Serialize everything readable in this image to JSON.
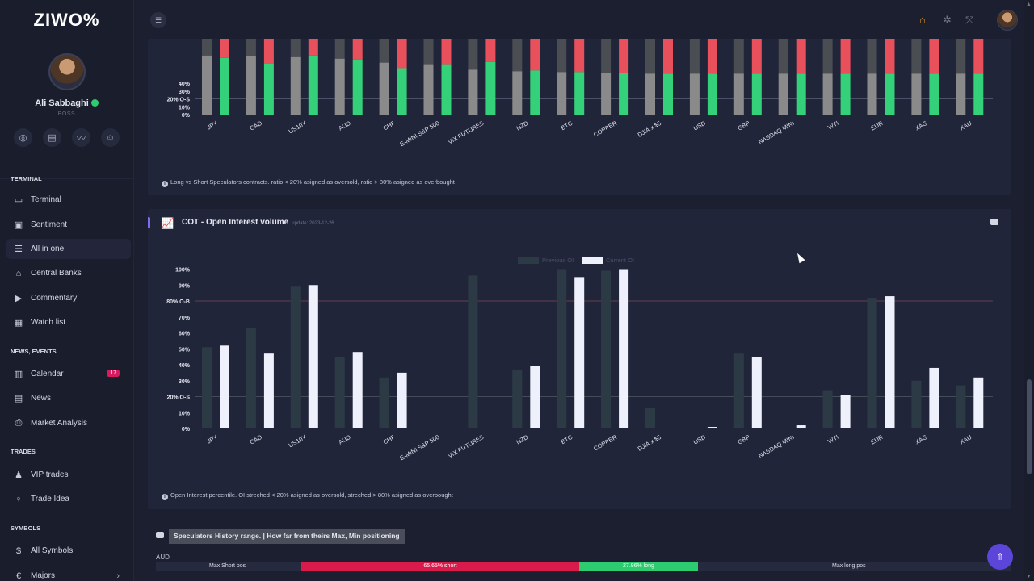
{
  "brand": {
    "logo": "ZIWO%"
  },
  "user": {
    "name": "Ali Sabbaghi",
    "role": "BOSS"
  },
  "profile_icons": [
    "support-icon",
    "document-icon",
    "chart-icon",
    "user-icon"
  ],
  "nav": {
    "terminal_section": "TERMINAL",
    "terminal": "Terminal",
    "sentiment": "Sentiment",
    "all_in_one": "All in one",
    "central_banks": "Central Banks",
    "commentary": "Commentary",
    "watch_list": "Watch list",
    "news_section": "NEWS, EVENTS",
    "calendar": "Calendar",
    "calendar_badge": "17",
    "news": "News",
    "market_analysis": "Market Analysis",
    "trades_section": "TRADES",
    "vip_trades": "VIP trades",
    "trade_idea": "Trade Idea",
    "symbols_section": "SYMBOLS",
    "all_symbols": "All Symbols",
    "majors": "Majors"
  },
  "chart1": {
    "note": "Long vs Short Speculators contracts. ratio < 20% asigned as oversold, ratio > 80% asigned as overbought"
  },
  "chart2": {
    "title": "COT - Open Interest volume",
    "update": "update: 2023-12-26",
    "note": "Open Interest percentile. OI streched < 20% asigned as oversold, streched > 80% asigned as overbought"
  },
  "history": {
    "title": "Speculators History range. | How far from theirs Max, Min positioning",
    "symbol": "AUD",
    "max_short_label": "Max Short pos",
    "short_label": "65.65% short",
    "long_label": "27.96% long",
    "max_long_label": "Max long pos",
    "short_pct": 65.65,
    "long_pct": 27.96
  },
  "chart_data": [
    {
      "type": "bar",
      "categories": [
        "JPY",
        "CAD",
        "US10Y",
        "AUD",
        "CHF",
        "E-MINI S&P 500",
        "VIX FUTURES",
        "NZD",
        "BTC",
        "COPPER",
        "DJIA x $5",
        "USD",
        "GBP",
        "NASDAQ MINI",
        "WTI",
        "EUR",
        "XAG",
        "XAU"
      ],
      "series": [
        {
          "values": [
            75,
            74,
            73,
            71,
            66,
            64,
            57,
            55,
            54,
            53,
            52,
            52,
            52,
            52,
            52,
            52,
            52,
            52
          ]
        },
        {
          "values": [
            72,
            65,
            75,
            70,
            59,
            64,
            67,
            56,
            54,
            53,
            52,
            52,
            52,
            52,
            52,
            52,
            52,
            52
          ]
        }
      ],
      "yticks": [
        "0%",
        "10%",
        "20% O-S",
        "30%",
        "40%"
      ],
      "ylim": [
        0,
        100
      ],
      "reference_lines": [
        20
      ],
      "colors": {
        "prev": "#8a8a8a",
        "prev_top": "#4a4d52",
        "curr": "#35d17a",
        "curr_top": "#e8505b"
      }
    },
    {
      "type": "bar",
      "categories": [
        "JPY",
        "CAD",
        "US10Y",
        "AUD",
        "CHF",
        "E-MINI S&P 500",
        "VIX FUTURES",
        "NZD",
        "BTC",
        "COPPER",
        "DJIA x $5",
        "USD",
        "GBP",
        "NASDAQ MINI",
        "WTI",
        "EUR",
        "XAG",
        "XAU"
      ],
      "series": [
        {
          "name": "Previous OI",
          "values": [
            51,
            63,
            89,
            45,
            32,
            0,
            96,
            37,
            100,
            99,
            13,
            0,
            47,
            0,
            24,
            82,
            30,
            27
          ]
        },
        {
          "name": "Current OI",
          "values": [
            52,
            47,
            90,
            48,
            35,
            0,
            0,
            39,
            95,
            100,
            0,
            1,
            45,
            2,
            21,
            83,
            38,
            32
          ]
        }
      ],
      "yticks": [
        "0%",
        "10%",
        "20% O-S",
        "30%",
        "40%",
        "50%",
        "60%",
        "70%",
        "80% O-B",
        "90%",
        "100%"
      ],
      "ylim": [
        0,
        100
      ],
      "reference_lines": [
        20,
        80
      ],
      "colors": {
        "prev": "#2c3a45",
        "curr": "#eef0fb"
      }
    }
  ]
}
